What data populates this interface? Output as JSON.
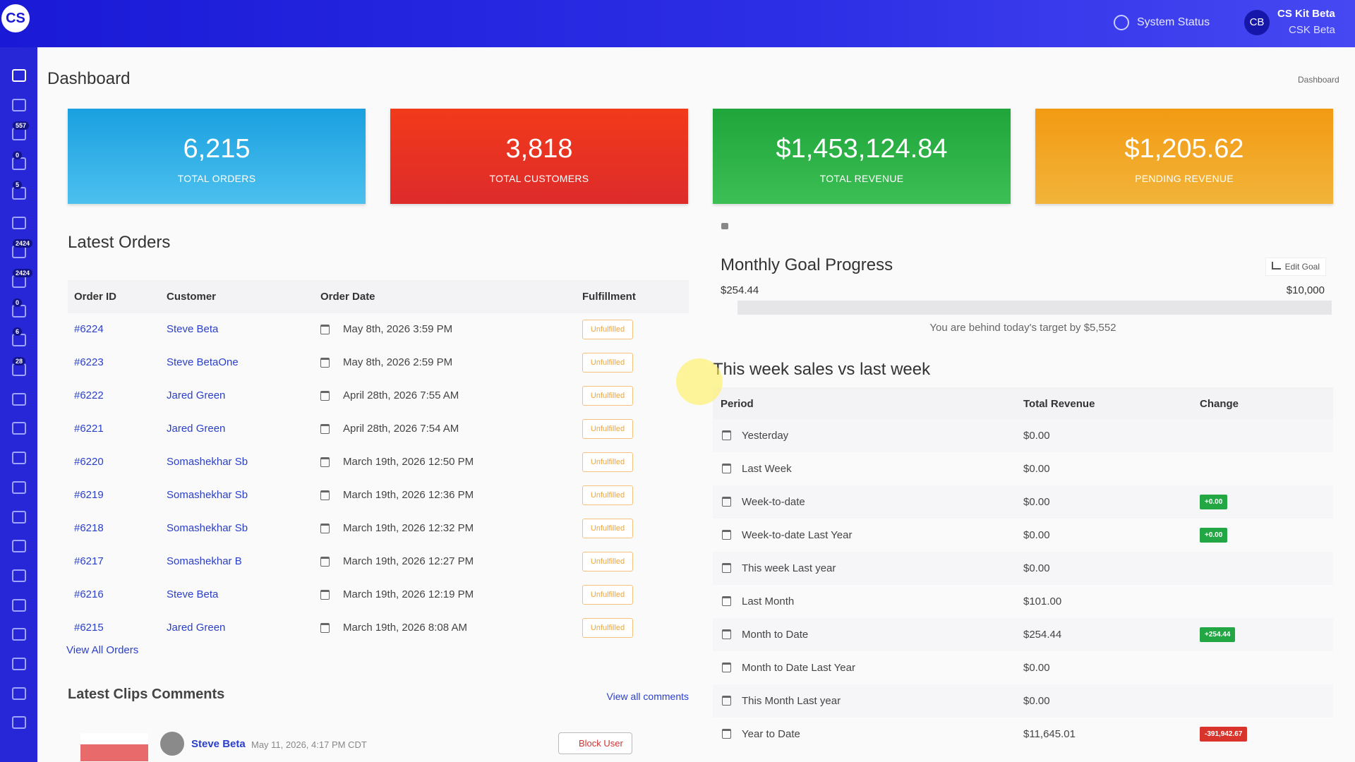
{
  "header": {
    "logo": "CS",
    "system_status": "System Status",
    "user_initials": "CB",
    "user_name": "CS Kit Beta",
    "user_sub": "CSK Beta"
  },
  "sidebar": {
    "badges": [
      "557",
      "0",
      "5",
      "2424",
      "2424",
      "0",
      "6",
      "28"
    ]
  },
  "page": {
    "title": "Dashboard",
    "breadcrumb": "Dashboard"
  },
  "stats": [
    {
      "value": "6,215",
      "label": "TOTAL ORDERS"
    },
    {
      "value": "3,818",
      "label": "TOTAL CUSTOMERS"
    },
    {
      "value": "$1,453,124.84",
      "label": "TOTAL REVENUE"
    },
    {
      "value": "$1,205.62",
      "label": "PENDING REVENUE"
    }
  ],
  "orders": {
    "title": "Latest Orders",
    "columns": [
      "Order ID",
      "Customer",
      "Order Date",
      "Fulfillment"
    ],
    "rows": [
      [
        "#6224",
        "Steve Beta",
        "May 8th, 2026 3:59 PM",
        "Unfulfilled"
      ],
      [
        "#6223",
        "Steve BetaOne",
        "May 8th, 2026 2:59 PM",
        "Unfulfilled"
      ],
      [
        "#6222",
        "Jared Green",
        "April 28th, 2026 7:55 AM",
        "Unfulfilled"
      ],
      [
        "#6221",
        "Jared Green",
        "April 28th, 2026 7:54 AM",
        "Unfulfilled"
      ],
      [
        "#6220",
        "Somashekhar Sb",
        "March 19th, 2026 12:50 PM",
        "Unfulfilled"
      ],
      [
        "#6219",
        "Somashekhar Sb",
        "March 19th, 2026 12:36 PM",
        "Unfulfilled"
      ],
      [
        "#6218",
        "Somashekhar Sb",
        "March 19th, 2026 12:32 PM",
        "Unfulfilled"
      ],
      [
        "#6217",
        "Somashekhar B",
        "March 19th, 2026 12:27 PM",
        "Unfulfilled"
      ],
      [
        "#6216",
        "Steve Beta",
        "March 19th, 2026 12:19 PM",
        "Unfulfilled"
      ],
      [
        "#6215",
        "Jared Green",
        "March 19th, 2026 8:08 AM",
        "Unfulfilled"
      ]
    ],
    "view_all": "View All Orders"
  },
  "comments": {
    "title": "Latest Clips Comments",
    "view_all": "View all comments",
    "items": [
      {
        "name": "Steve Beta",
        "time": "May 11, 2026, 4:17 PM CDT",
        "action": "Block User"
      }
    ]
  },
  "goal": {
    "title": "Monthly Goal Progress",
    "edit": "Edit Goal",
    "current": "$254.44",
    "target": "$10,000",
    "message": "You are behind today's target by $5,552"
  },
  "weekly": {
    "title": "This week sales vs last week",
    "columns": [
      "Period",
      "Total Revenue",
      "Change"
    ],
    "rows": [
      [
        "Yesterday",
        "$0.00",
        null
      ],
      [
        "Last Week",
        "$0.00",
        null
      ],
      [
        "Week-to-date",
        "$0.00",
        "+0.00"
      ],
      [
        "Week-to-date Last Year",
        "$0.00",
        "+0.00"
      ],
      [
        "This week Last year",
        "$0.00",
        null
      ],
      [
        "Last Month",
        "$101.00",
        null
      ],
      [
        "Month to Date",
        "$254.44",
        "+254.44"
      ],
      [
        "Month to Date Last Year",
        "$0.00",
        null
      ],
      [
        "This Month Last year",
        "$0.00",
        null
      ],
      [
        "Year to Date",
        "$11,645.01",
        "-391,942.67"
      ]
    ]
  }
}
